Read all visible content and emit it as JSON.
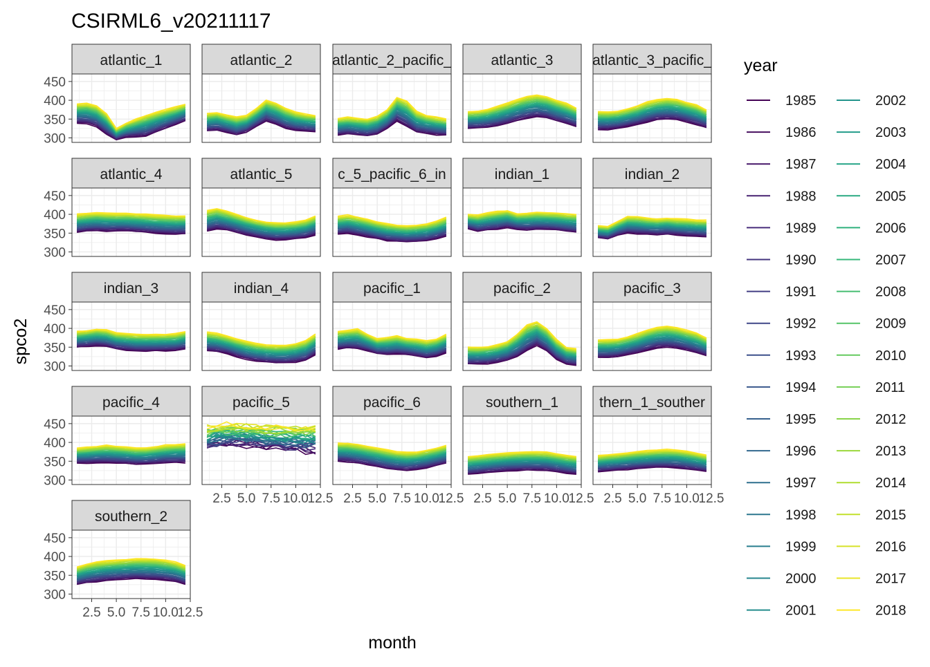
{
  "chart_data": {
    "type": "line",
    "title": "CSIRML6_v20211117",
    "xlabel": "month",
    "ylabel": "spco2",
    "x_ticks": [
      "2.5",
      "5.0",
      "7.5",
      "10.0",
      "12.5"
    ],
    "y_ticks": [
      "300",
      "350",
      "400",
      "450"
    ],
    "xlim": [
      0.5,
      12.5
    ],
    "ylim": [
      288,
      470
    ],
    "grid": true,
    "legend_title": "year",
    "legend_position": "right",
    "years_first": 1985,
    "years_last": 2018,
    "legend_years": [
      "1985",
      "1986",
      "1987",
      "1988",
      "1989",
      "1990",
      "1991",
      "1992",
      "1993",
      "1994",
      "1995",
      "1996",
      "1997",
      "1998",
      "1999",
      "2000",
      "2001",
      "2002",
      "2003",
      "2004",
      "2005",
      "2006",
      "2007",
      "2008",
      "2009",
      "2010",
      "2011",
      "2012",
      "2013",
      "2014",
      "2015",
      "2016",
      "2017",
      "2018"
    ],
    "colormap": "viridis",
    "months": [
      1,
      2,
      3,
      4,
      5,
      6,
      7,
      8,
      9,
      10,
      11,
      12
    ],
    "panels": [
      {
        "label": "atlantic_1",
        "first": [
          340,
          338,
          330,
          310,
          295,
          302,
          303,
          305,
          315,
          325,
          335,
          345
        ],
        "last": [
          390,
          392,
          385,
          365,
          325,
          340,
          350,
          360,
          368,
          375,
          382,
          390
        ]
      },
      {
        "label": "atlantic_2",
        "first": [
          318,
          320,
          315,
          308,
          315,
          330,
          345,
          335,
          325,
          320,
          318,
          316
        ],
        "last": [
          365,
          368,
          360,
          355,
          360,
          378,
          400,
          392,
          378,
          368,
          363,
          360
        ]
      },
      {
        "label": "atlantic_2_pacific_",
        "first": [
          308,
          310,
          308,
          305,
          310,
          325,
          345,
          330,
          315,
          312,
          308,
          307
        ],
        "last": [
          352,
          355,
          352,
          350,
          358,
          375,
          408,
          398,
          370,
          360,
          355,
          350
        ]
      },
      {
        "label": "atlantic_3",
        "first": [
          325,
          326,
          328,
          332,
          338,
          345,
          352,
          356,
          353,
          345,
          338,
          330
        ],
        "last": [
          370,
          372,
          376,
          384,
          392,
          402,
          410,
          414,
          410,
          400,
          392,
          380
        ]
      },
      {
        "label": "atlantic_3_pacific_",
        "first": [
          322,
          322,
          325,
          330,
          335,
          342,
          348,
          350,
          348,
          342,
          335,
          327
        ],
        "last": [
          370,
          370,
          372,
          378,
          386,
          395,
          402,
          405,
          402,
          395,
          388,
          375
        ]
      },
      {
        "label": "atlantic_4",
        "first": [
          352,
          355,
          356,
          355,
          356,
          356,
          354,
          352,
          350,
          348,
          347,
          348
        ],
        "last": [
          400,
          402,
          405,
          403,
          402,
          402,
          401,
          400,
          398,
          397,
          396,
          396
        ]
      },
      {
        "label": "atlantic_5",
        "first": [
          355,
          362,
          358,
          352,
          345,
          340,
          335,
          332,
          333,
          335,
          338,
          345
        ],
        "last": [
          410,
          415,
          408,
          400,
          392,
          385,
          380,
          378,
          378,
          380,
          385,
          395
        ]
      },
      {
        "label": "c_5_pacific_6_in",
        "first": [
          348,
          350,
          345,
          340,
          335,
          330,
          328,
          327,
          328,
          330,
          335,
          342
        ],
        "last": [
          395,
          398,
          393,
          387,
          380,
          375,
          372,
          370,
          372,
          375,
          382,
          392
        ]
      },
      {
        "label": "indian_1",
        "first": [
          362,
          355,
          358,
          360,
          365,
          360,
          358,
          360,
          360,
          358,
          355,
          352
        ],
        "last": [
          400,
          398,
          404,
          408,
          410,
          402,
          404,
          406,
          405,
          404,
          402,
          400
        ]
      },
      {
        "label": "indian_2",
        "first": [
          338,
          335,
          345,
          350,
          348,
          347,
          346,
          347,
          345,
          343,
          342,
          340
        ],
        "last": [
          370,
          368,
          382,
          395,
          394,
          390,
          388,
          390,
          388,
          387,
          385,
          384
        ]
      },
      {
        "label": "indian_3",
        "first": [
          350,
          352,
          354,
          352,
          345,
          342,
          340,
          340,
          340,
          340,
          342,
          345
        ],
        "last": [
          392,
          394,
          398,
          396,
          388,
          386,
          384,
          384,
          384,
          385,
          386,
          392
        ]
      },
      {
        "label": "indian_4",
        "first": [
          340,
          338,
          333,
          325,
          318,
          313,
          310,
          308,
          308,
          310,
          315,
          330
        ],
        "last": [
          390,
          387,
          380,
          372,
          365,
          360,
          357,
          355,
          356,
          360,
          368,
          385
        ]
      },
      {
        "label": "pacific_1",
        "first": [
          345,
          348,
          346,
          340,
          333,
          330,
          332,
          330,
          326,
          322,
          326,
          335
        ],
        "last": [
          392,
          395,
          398,
          385,
          372,
          376,
          380,
          374,
          372,
          367,
          372,
          384
        ]
      },
      {
        "label": "pacific_2",
        "first": [
          305,
          305,
          306,
          310,
          315,
          325,
          340,
          355,
          340,
          318,
          305,
          302
        ],
        "last": [
          350,
          350,
          352,
          356,
          365,
          385,
          410,
          418,
          400,
          370,
          350,
          345
        ]
      },
      {
        "label": "pacific_3",
        "first": [
          322,
          322,
          325,
          330,
          335,
          342,
          348,
          350,
          348,
          342,
          335,
          327
        ],
        "last": [
          370,
          370,
          372,
          378,
          386,
          395,
          402,
          405,
          402,
          395,
          388,
          375
        ]
      },
      {
        "label": "pacific_4",
        "first": [
          345,
          345,
          346,
          346,
          345,
          344,
          342,
          342,
          344,
          346,
          346,
          346
        ],
        "last": [
          385,
          387,
          390,
          392,
          390,
          388,
          385,
          386,
          389,
          393,
          395,
          396
        ]
      },
      {
        "label": "pacific_5",
        "first": [
          385,
          390,
          392,
          395,
          393,
          390,
          388,
          385,
          382,
          380,
          378,
          376
        ],
        "last": [
          440,
          444,
          446,
          448,
          446,
          444,
          442,
          441,
          440,
          440,
          440,
          440
        ]
      },
      {
        "label": "pacific_6",
        "first": [
          350,
          348,
          345,
          340,
          335,
          330,
          327,
          326,
          328,
          332,
          338,
          344
        ],
        "last": [
          398,
          398,
          395,
          390,
          385,
          380,
          375,
          373,
          375,
          380,
          385,
          392
        ]
      },
      {
        "label": "southern_1",
        "first": [
          315,
          317,
          320,
          322,
          324,
          325,
          326,
          326,
          325,
          322,
          318,
          315
        ],
        "last": [
          362,
          365,
          368,
          370,
          372,
          374,
          375,
          375,
          374,
          370,
          366,
          362
        ]
      },
      {
        "label": "thern_1_souther",
        "first": [
          322,
          324,
          326,
          328,
          330,
          332,
          333,
          333,
          332,
          329,
          326,
          322
        ],
        "last": [
          365,
          368,
          370,
          373,
          376,
          378,
          380,
          381,
          380,
          377,
          372,
          366
        ]
      },
      {
        "label": "southern_2",
        "first": [
          325,
          330,
          333,
          336,
          338,
          340,
          341,
          340,
          339,
          337,
          333,
          326
        ],
        "last": [
          372,
          380,
          385,
          388,
          390,
          392,
          394,
          394,
          393,
          390,
          385,
          375
        ]
      }
    ]
  }
}
